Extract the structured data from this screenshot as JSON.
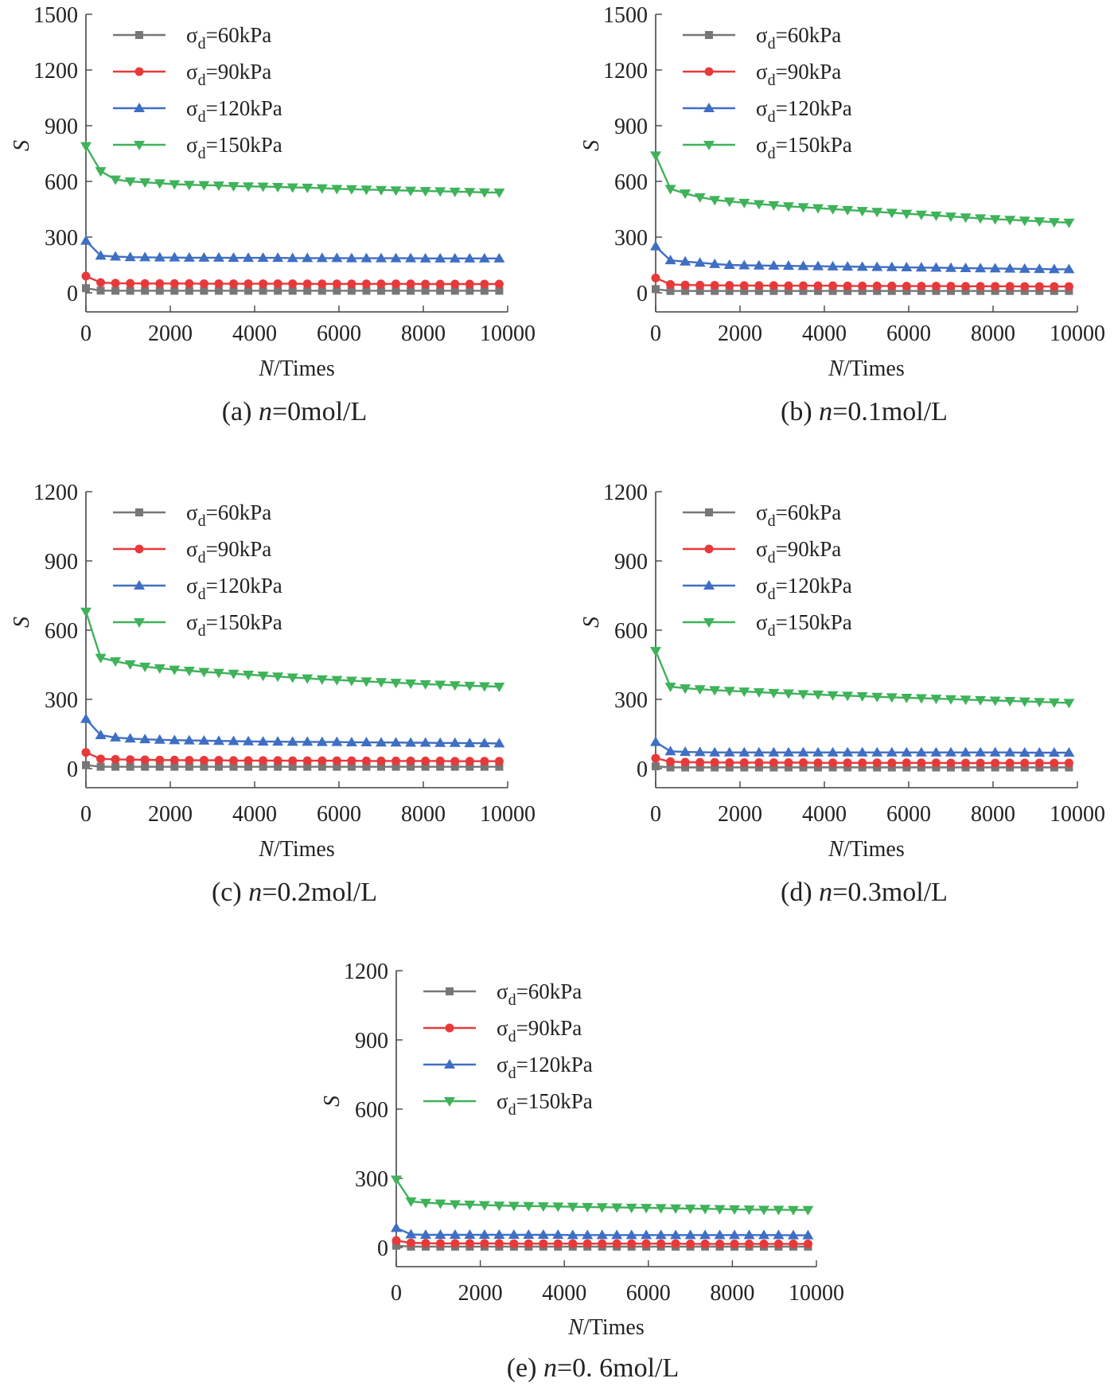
{
  "figure": {
    "legend_symbol": "σ",
    "legend_subscript": "d"
  },
  "chart_data": [
    {
      "id": "a",
      "type": "line",
      "caption": {
        "prefix": "(a) ",
        "italic": "n",
        "suffix": "=0mol/L"
      },
      "xlabel": {
        "italic": "N",
        "rest": "/Times"
      },
      "ylabel": "S",
      "xlim": [
        0,
        10000
      ],
      "ylim": [
        0,
        1500
      ],
      "xticks": [
        0,
        2000,
        4000,
        6000,
        8000,
        10000
      ],
      "yticks": [
        0,
        300,
        600,
        900,
        1200,
        1500
      ],
      "x": [
        0,
        350,
        700,
        1050,
        1400,
        1750,
        2100,
        2450,
        2800,
        3150,
        3500,
        3850,
        4200,
        4550,
        4900,
        5250,
        5600,
        5950,
        6300,
        6650,
        7000,
        7350,
        7700,
        8050,
        8400,
        8750,
        9100,
        9450,
        9800
      ],
      "series": [
        {
          "name": "=60kPa",
          "color": "#777777",
          "marker": "square",
          "values": [
            25,
            12,
            11,
            11,
            11,
            11,
            11,
            11,
            11,
            11,
            11,
            11,
            11,
            11,
            11,
            11,
            11,
            11,
            11,
            11,
            11,
            11,
            11,
            11,
            11,
            11,
            11,
            11,
            11
          ]
        },
        {
          "name": "=90kPa",
          "color": "#e8393a",
          "marker": "circle",
          "values": [
            90,
            55,
            52,
            51,
            50,
            50,
            50,
            50,
            49,
            49,
            49,
            49,
            49,
            49,
            49,
            48,
            48,
            48,
            48,
            48,
            48,
            48,
            48,
            47,
            47,
            47,
            47,
            47,
            47
          ]
        },
        {
          "name": "=120kPa",
          "color": "#3f6fc4",
          "marker": "triangle-up",
          "values": [
            280,
            200,
            195,
            192,
            191,
            190,
            190,
            189,
            189,
            189,
            188,
            188,
            188,
            188,
            187,
            187,
            187,
            187,
            186,
            186,
            186,
            186,
            186,
            185,
            185,
            185,
            185,
            185,
            185
          ]
        },
        {
          "name": "=150kPa",
          "color": "#3fb25a",
          "marker": "triangle-down",
          "values": [
            790,
            655,
            610,
            600,
            595,
            590,
            585,
            582,
            580,
            578,
            575,
            573,
            572,
            570,
            568,
            566,
            563,
            560,
            558,
            556,
            554,
            552,
            550,
            548,
            547,
            545,
            543,
            541,
            540
          ]
        }
      ]
    },
    {
      "id": "b",
      "type": "line",
      "caption": {
        "prefix": "(b) ",
        "italic": "n",
        "suffix": "=0.1mol/L"
      },
      "xlabel": {
        "italic": "N",
        "rest": "/Times"
      },
      "ylabel": "S",
      "xlim": [
        0,
        10000
      ],
      "ylim": [
        0,
        1500
      ],
      "xticks": [
        0,
        2000,
        4000,
        6000,
        8000,
        10000
      ],
      "yticks": [
        0,
        300,
        600,
        900,
        1200,
        1500
      ],
      "x": [
        0,
        350,
        700,
        1050,
        1400,
        1750,
        2100,
        2450,
        2800,
        3150,
        3500,
        3850,
        4200,
        4550,
        4900,
        5250,
        5600,
        5950,
        6300,
        6650,
        7000,
        7350,
        7700,
        8050,
        8400,
        8750,
        9100,
        9450,
        9800
      ],
      "series": [
        {
          "name": "=60kPa",
          "color": "#777777",
          "marker": "square",
          "values": [
            20,
            10,
            10,
            10,
            10,
            10,
            10,
            10,
            10,
            10,
            10,
            10,
            10,
            10,
            10,
            10,
            10,
            10,
            10,
            10,
            10,
            10,
            10,
            10,
            10,
            10,
            10,
            10,
            10
          ]
        },
        {
          "name": "=90kPa",
          "color": "#e8393a",
          "marker": "circle",
          "values": [
            80,
            45,
            42,
            41,
            40,
            40,
            39,
            39,
            39,
            38,
            38,
            38,
            38,
            37,
            37,
            37,
            37,
            36,
            36,
            36,
            36,
            35,
            35,
            35,
            35,
            34,
            34,
            34,
            34
          ]
        },
        {
          "name": "=120kPa",
          "color": "#3f6fc4",
          "marker": "triangle-up",
          "values": [
            250,
            175,
            168,
            162,
            155,
            150,
            148,
            147,
            146,
            145,
            144,
            143,
            142,
            141,
            140,
            139,
            138,
            137,
            136,
            135,
            134,
            133,
            132,
            131,
            130,
            129,
            128,
            127,
            127
          ]
        },
        {
          "name": "=150kPa",
          "color": "#3fb25a",
          "marker": "triangle-down",
          "values": [
            740,
            560,
            535,
            515,
            500,
            492,
            485,
            478,
            472,
            466,
            461,
            456,
            451,
            446,
            441,
            436,
            431,
            426,
            421,
            416,
            411,
            406,
            401,
            397,
            393,
            389,
            385,
            381,
            378
          ]
        }
      ]
    },
    {
      "id": "c",
      "type": "line",
      "caption": {
        "prefix": "(c) ",
        "italic": "n",
        "suffix": "=0.2mol/L"
      },
      "xlabel": {
        "italic": "N",
        "rest": "/Times"
      },
      "ylabel": "S",
      "xlim": [
        0,
        10000
      ],
      "ylim": [
        0,
        1200
      ],
      "xticks": [
        0,
        2000,
        4000,
        6000,
        8000,
        10000
      ],
      "yticks": [
        0,
        300,
        600,
        900,
        1200
      ],
      "x": [
        0,
        350,
        700,
        1050,
        1400,
        1750,
        2100,
        2450,
        2800,
        3150,
        3500,
        3850,
        4200,
        4550,
        4900,
        5250,
        5600,
        5950,
        6300,
        6650,
        7000,
        7350,
        7700,
        8050,
        8400,
        8750,
        9100,
        9450,
        9800
      ],
      "series": [
        {
          "name": "=60kPa",
          "color": "#777777",
          "marker": "square",
          "values": [
            15,
            8,
            8,
            8,
            8,
            8,
            8,
            8,
            8,
            8,
            8,
            8,
            8,
            8,
            8,
            8,
            8,
            8,
            8,
            8,
            8,
            8,
            8,
            8,
            8,
            8,
            8,
            8,
            8
          ]
        },
        {
          "name": "=90kPa",
          "color": "#e8393a",
          "marker": "circle",
          "values": [
            70,
            42,
            40,
            39,
            38,
            37,
            37,
            36,
            36,
            36,
            35,
            35,
            35,
            35,
            34,
            34,
            34,
            34,
            34,
            33,
            33,
            33,
            33,
            33,
            33,
            32,
            32,
            32,
            32
          ]
        },
        {
          "name": "=120kPa",
          "color": "#3f6fc4",
          "marker": "triangle-up",
          "values": [
            215,
            145,
            135,
            130,
            127,
            125,
            123,
            122,
            121,
            120,
            119,
            118,
            117,
            117,
            116,
            116,
            115,
            115,
            114,
            114,
            113,
            113,
            112,
            112,
            111,
            111,
            110,
            110,
            109
          ]
        },
        {
          "name": "=150kPa",
          "color": "#3fb25a",
          "marker": "triangle-down",
          "values": [
            680,
            480,
            465,
            452,
            442,
            435,
            429,
            424,
            419,
            415,
            411,
            407,
            403,
            399,
            395,
            391,
            387,
            384,
            381,
            378,
            375,
            372,
            369,
            366,
            364,
            361,
            359,
            357,
            355
          ]
        }
      ]
    },
    {
      "id": "d",
      "type": "line",
      "caption": {
        "prefix": "(d) ",
        "italic": "n",
        "suffix": "=0.3mol/L"
      },
      "xlabel": {
        "italic": "N",
        "rest": "/Times"
      },
      "ylabel": "S",
      "xlim": [
        0,
        10000
      ],
      "ylim": [
        0,
        1200
      ],
      "xticks": [
        0,
        2000,
        4000,
        6000,
        8000,
        10000
      ],
      "yticks": [
        0,
        300,
        600,
        900,
        1200
      ],
      "x": [
        0,
        350,
        700,
        1050,
        1400,
        1750,
        2100,
        2450,
        2800,
        3150,
        3500,
        3850,
        4200,
        4550,
        4900,
        5250,
        5600,
        5950,
        6300,
        6650,
        7000,
        7350,
        7700,
        8050,
        8400,
        8750,
        9100,
        9450,
        9800
      ],
      "series": [
        {
          "name": "=60kPa",
          "color": "#777777",
          "marker": "square",
          "values": [
            10,
            5,
            5,
            5,
            5,
            5,
            5,
            5,
            5,
            5,
            5,
            5,
            5,
            5,
            5,
            5,
            5,
            5,
            5,
            5,
            5,
            5,
            5,
            5,
            5,
            5,
            5,
            5,
            5
          ]
        },
        {
          "name": "=90kPa",
          "color": "#e8393a",
          "marker": "circle",
          "values": [
            45,
            30,
            28,
            27,
            27,
            26,
            26,
            26,
            26,
            26,
            26,
            25,
            25,
            25,
            25,
            25,
            25,
            25,
            25,
            25,
            24,
            24,
            24,
            24,
            24,
            24,
            24,
            24,
            24
          ]
        },
        {
          "name": "=120kPa",
          "color": "#3f6fc4",
          "marker": "triangle-up",
          "values": [
            115,
            75,
            72,
            71,
            70,
            70,
            70,
            70,
            70,
            70,
            70,
            70,
            70,
            70,
            70,
            70,
            70,
            70,
            70,
            70,
            70,
            70,
            70,
            70,
            70,
            69,
            69,
            69,
            69
          ]
        },
        {
          "name": "=150kPa",
          "color": "#3fb25a",
          "marker": "triangle-down",
          "values": [
            510,
            355,
            348,
            344,
            340,
            337,
            334,
            331,
            328,
            326,
            323,
            321,
            318,
            316,
            314,
            311,
            309,
            307,
            305,
            303,
            301,
            299,
            297,
            295,
            293,
            291,
            289,
            287,
            285
          ]
        }
      ]
    },
    {
      "id": "e",
      "type": "line",
      "caption": {
        "prefix": "(e) ",
        "italic": "n",
        "suffix": "=0. 6mol/L"
      },
      "xlabel": {
        "italic": "N",
        "rest": "/Times"
      },
      "ylabel": "S",
      "xlim": [
        0,
        10000
      ],
      "ylim": [
        0,
        1200
      ],
      "xticks": [
        0,
        2000,
        4000,
        6000,
        8000,
        10000
      ],
      "yticks": [
        0,
        300,
        600,
        900,
        1200
      ],
      "x": [
        0,
        350,
        700,
        1050,
        1400,
        1750,
        2100,
        2450,
        2800,
        3150,
        3500,
        3850,
        4200,
        4550,
        4900,
        5250,
        5600,
        5950,
        6300,
        6650,
        7000,
        7350,
        7700,
        8050,
        8400,
        8750,
        9100,
        9450,
        9800
      ],
      "series": [
        {
          "name": "=60kPa",
          "color": "#777777",
          "marker": "square",
          "values": [
            8,
            4,
            4,
            4,
            4,
            4,
            4,
            4,
            4,
            4,
            4,
            4,
            4,
            4,
            4,
            4,
            4,
            4,
            4,
            4,
            4,
            4,
            4,
            4,
            4,
            4,
            4,
            4,
            4
          ]
        },
        {
          "name": "=90kPa",
          "color": "#e8393a",
          "marker": "circle",
          "values": [
            30,
            20,
            19,
            18,
            18,
            18,
            18,
            18,
            17,
            17,
            17,
            17,
            17,
            17,
            17,
            17,
            17,
            17,
            17,
            17,
            16,
            16,
            16,
            16,
            16,
            16,
            16,
            16,
            16
          ]
        },
        {
          "name": "=120kPa",
          "color": "#3f6fc4",
          "marker": "triangle-up",
          "values": [
            85,
            57,
            55,
            55,
            55,
            55,
            55,
            55,
            55,
            55,
            55,
            55,
            54,
            54,
            54,
            54,
            54,
            54,
            54,
            54,
            54,
            54,
            54,
            54,
            54,
            54,
            54,
            53,
            53
          ]
        },
        {
          "name": "=150kPa",
          "color": "#3fb25a",
          "marker": "triangle-down",
          "values": [
            295,
            200,
            194,
            191,
            188,
            186,
            184,
            182,
            181,
            180,
            179,
            178,
            177,
            176,
            175,
            174,
            173,
            172,
            171,
            170,
            169,
            168,
            167,
            166,
            165,
            164,
            164,
            163,
            163
          ]
        }
      ]
    }
  ]
}
